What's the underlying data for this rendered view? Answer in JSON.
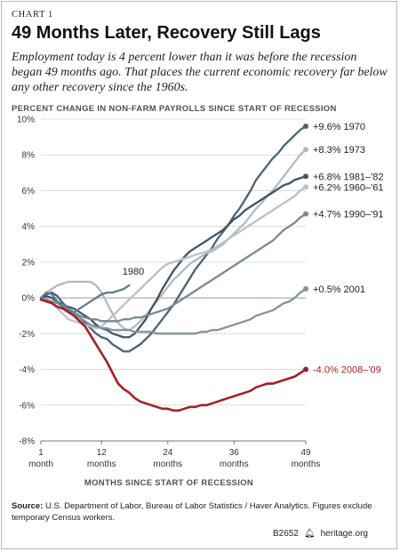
{
  "header": {
    "kicker": "CHART 1",
    "title": "49 Months Later, Recovery Still Lags",
    "subtitle": "Employment today is 4 percent lower than it was before the recession began 49 months ago. That places the current economic recovery far below any other recovery since the 1960s."
  },
  "footer": {
    "source_label": "Source:",
    "source_text": "U.S. Department of Labor, Bureau of Labor Statistics / Haver Analytics. Figures exclude temporary Census workers.",
    "code": "B2652",
    "site": "heritage.org",
    "logo_icon": "liberty-bell-icon"
  },
  "chart_data": {
    "type": "line",
    "ylabel": "PERCENT CHANGE IN NON-FARM PAYROLLS SINCE START OF RECESSION",
    "xlabel": "MONTHS SINCE START OF RECESSION",
    "xlim": [
      1,
      49
    ],
    "ylim": [
      -8,
      10
    ],
    "yticks": [
      -8,
      -6,
      -4,
      -2,
      0,
      2,
      4,
      6,
      8,
      10
    ],
    "ytick_labels": [
      "-8%",
      "-6%",
      "-4%",
      "-2%",
      "0%",
      "2%",
      "4%",
      "6%",
      "8%",
      "10%"
    ],
    "xticks": [
      1,
      12,
      24,
      36,
      49
    ],
    "xtick_labels": [
      [
        "1",
        "month"
      ],
      [
        "12",
        "months"
      ],
      [
        "24",
        "months"
      ],
      [
        "36",
        "months"
      ],
      [
        "49",
        "months"
      ]
    ],
    "grid": "horizontal",
    "series": [
      {
        "name": "1970",
        "label": "+9.6% 1970",
        "color": "#4a6373",
        "end_marker": true,
        "x": [
          1,
          2,
          3,
          4,
          5,
          6,
          7,
          8,
          9,
          10,
          11,
          12,
          13,
          14,
          15,
          16,
          17,
          18,
          19,
          20,
          21,
          22,
          23,
          24,
          25,
          26,
          27,
          28,
          29,
          30,
          31,
          32,
          33,
          34,
          35,
          36,
          37,
          38,
          39,
          40,
          41,
          42,
          43,
          44,
          45,
          46,
          47,
          48,
          49
        ],
        "values": [
          0.0,
          0.2,
          0.3,
          0.1,
          -0.3,
          -0.6,
          -0.9,
          -1.1,
          -1.4,
          -1.7,
          -2.0,
          -2.2,
          -2.3,
          -2.6,
          -2.8,
          -3.0,
          -3.0,
          -2.8,
          -2.6,
          -2.3,
          -2.0,
          -1.6,
          -1.2,
          -0.8,
          -0.4,
          0.1,
          0.6,
          1.1,
          1.6,
          2.0,
          2.4,
          2.8,
          3.3,
          3.7,
          4.1,
          4.6,
          5.0,
          5.5,
          6.0,
          6.6,
          7.0,
          7.4,
          7.8,
          8.1,
          8.5,
          8.8,
          9.1,
          9.4,
          9.6
        ]
      },
      {
        "name": "1973",
        "label": "+8.3% 1973",
        "color": "#b4b9bd",
        "end_marker": true,
        "x": [
          1,
          2,
          3,
          4,
          5,
          6,
          7,
          8,
          9,
          10,
          11,
          12,
          13,
          14,
          15,
          16,
          17,
          18,
          19,
          20,
          21,
          22,
          23,
          24,
          25,
          26,
          27,
          28,
          29,
          30,
          31,
          32,
          33,
          34,
          35,
          36,
          37,
          38,
          39,
          40,
          41,
          42,
          43,
          44,
          45,
          46,
          47,
          48,
          49
        ],
        "values": [
          0.0,
          0.3,
          0.5,
          0.7,
          0.8,
          0.9,
          0.9,
          0.9,
          0.9,
          0.9,
          0.7,
          0.3,
          -0.3,
          -0.9,
          -1.4,
          -1.7,
          -1.8,
          -1.6,
          -1.3,
          -1.0,
          -0.6,
          -0.2,
          0.2,
          0.6,
          1.0,
          1.3,
          1.6,
          1.9,
          2.1,
          2.3,
          2.5,
          2.6,
          2.8,
          3.0,
          3.3,
          3.6,
          3.9,
          4.2,
          4.6,
          5.0,
          5.3,
          5.7,
          6.0,
          6.4,
          6.8,
          7.2,
          7.6,
          8.0,
          8.3
        ]
      },
      {
        "name": "1981-'82",
        "label": "+6.8% 1981–'82",
        "color": "#3d5566",
        "end_marker": true,
        "x": [
          1,
          2,
          3,
          4,
          5,
          6,
          7,
          8,
          9,
          10,
          11,
          12,
          13,
          14,
          15,
          16,
          17,
          18,
          19,
          20,
          21,
          22,
          23,
          24,
          25,
          26,
          27,
          28,
          29,
          30,
          31,
          32,
          33,
          34,
          35,
          36,
          37,
          38,
          39,
          40,
          41,
          42,
          43,
          44,
          45,
          46,
          47,
          48,
          49
        ],
        "values": [
          0.0,
          0.1,
          0.0,
          -0.2,
          -0.4,
          -0.5,
          -0.6,
          -0.8,
          -1.0,
          -1.2,
          -1.5,
          -1.7,
          -1.8,
          -2.0,
          -2.1,
          -2.2,
          -2.2,
          -2.0,
          -1.6,
          -1.2,
          -0.6,
          -0.1,
          0.5,
          1.0,
          1.5,
          1.9,
          2.3,
          2.6,
          2.8,
          3.0,
          3.2,
          3.4,
          3.6,
          3.8,
          4.1,
          4.4,
          4.6,
          4.9,
          5.1,
          5.3,
          5.5,
          5.7,
          5.9,
          6.1,
          6.3,
          6.4,
          6.6,
          6.7,
          6.8
        ]
      },
      {
        "name": "1960-'61",
        "label": "+6.2% 1960–'61",
        "color": "#bcc1c4",
        "end_marker": true,
        "x": [
          1,
          2,
          3,
          4,
          5,
          6,
          7,
          8,
          9,
          10,
          11,
          12,
          13,
          14,
          15,
          16,
          17,
          18,
          19,
          20,
          21,
          22,
          23,
          24,
          25,
          26,
          27,
          28,
          29,
          30,
          31,
          32,
          33,
          34,
          35,
          36,
          37,
          38,
          39,
          40,
          41,
          42,
          43,
          44,
          45,
          46,
          47,
          48,
          49
        ],
        "values": [
          0.0,
          -0.1,
          -0.3,
          -0.6,
          -0.9,
          -1.2,
          -1.3,
          -1.4,
          -1.5,
          -1.6,
          -1.7,
          -1.6,
          -1.3,
          -1.0,
          -0.7,
          -0.4,
          -0.1,
          0.2,
          0.5,
          0.8,
          1.1,
          1.4,
          1.7,
          1.9,
          2.0,
          2.1,
          2.2,
          2.3,
          2.4,
          2.5,
          2.6,
          2.7,
          2.9,
          3.1,
          3.3,
          3.5,
          3.7,
          3.9,
          4.1,
          4.3,
          4.5,
          4.7,
          4.9,
          5.1,
          5.3,
          5.5,
          5.7,
          6.0,
          6.2
        ]
      },
      {
        "name": "1990-'91",
        "label": "+4.7% 1990–'91",
        "color": "#778a96",
        "end_marker": true,
        "x": [
          1,
          2,
          3,
          4,
          5,
          6,
          7,
          8,
          9,
          10,
          11,
          12,
          13,
          14,
          15,
          16,
          17,
          18,
          19,
          20,
          21,
          22,
          23,
          24,
          25,
          26,
          27,
          28,
          29,
          30,
          31,
          32,
          33,
          34,
          35,
          36,
          37,
          38,
          39,
          40,
          41,
          42,
          43,
          44,
          45,
          46,
          47,
          48,
          49
        ],
        "values": [
          0.0,
          -0.1,
          -0.2,
          -0.3,
          -0.4,
          -0.6,
          -0.8,
          -1.0,
          -1.1,
          -1.2,
          -1.2,
          -1.3,
          -1.3,
          -1.3,
          -1.3,
          -1.2,
          -1.2,
          -1.1,
          -1.1,
          -1.0,
          -0.9,
          -0.8,
          -0.7,
          -0.6,
          -0.4,
          -0.2,
          0.0,
          0.2,
          0.4,
          0.6,
          0.8,
          1.0,
          1.2,
          1.4,
          1.6,
          1.8,
          2.0,
          2.2,
          2.4,
          2.6,
          2.8,
          3.0,
          3.2,
          3.5,
          3.8,
          4.0,
          4.2,
          4.5,
          4.7
        ]
      },
      {
        "name": "2001",
        "label": "+0.5% 2001",
        "color": "#7f939e",
        "end_marker": true,
        "x": [
          1,
          2,
          3,
          4,
          5,
          6,
          7,
          8,
          9,
          10,
          11,
          12,
          13,
          14,
          15,
          16,
          17,
          18,
          19,
          20,
          21,
          22,
          23,
          24,
          25,
          26,
          27,
          28,
          29,
          30,
          31,
          32,
          33,
          34,
          35,
          36,
          37,
          38,
          39,
          40,
          41,
          42,
          43,
          44,
          45,
          46,
          47,
          48,
          49
        ],
        "values": [
          0.0,
          -0.1,
          -0.2,
          -0.3,
          -0.5,
          -0.7,
          -0.9,
          -1.1,
          -1.3,
          -1.5,
          -1.6,
          -1.7,
          -1.7,
          -1.8,
          -1.8,
          -1.8,
          -1.8,
          -1.9,
          -1.9,
          -1.9,
          -1.9,
          -2.0,
          -2.0,
          -2.0,
          -2.0,
          -2.0,
          -2.0,
          -2.0,
          -2.0,
          -1.9,
          -1.9,
          -1.8,
          -1.8,
          -1.7,
          -1.6,
          -1.5,
          -1.4,
          -1.3,
          -1.2,
          -1.0,
          -0.9,
          -0.8,
          -0.7,
          -0.5,
          -0.3,
          -0.2,
          0.0,
          0.3,
          0.5
        ]
      },
      {
        "name": "1980",
        "label": "1980",
        "color": "#5f7e8f",
        "end_marker": false,
        "x": [
          1,
          2,
          3,
          4,
          5,
          6,
          7,
          8,
          9,
          10,
          11,
          12,
          13,
          14,
          15,
          16,
          17
        ],
        "values": [
          0.0,
          0.3,
          0.2,
          -0.2,
          -0.5,
          -0.7,
          -0.8,
          -0.6,
          -0.4,
          -0.2,
          0.0,
          0.2,
          0.3,
          0.3,
          0.4,
          0.5,
          0.7
        ]
      },
      {
        "name": "2008-'09",
        "label": "-4.0% 2008–'09",
        "color": "#a91d24",
        "end_marker": true,
        "x": [
          1,
          2,
          3,
          4,
          5,
          6,
          7,
          8,
          9,
          10,
          11,
          12,
          13,
          14,
          15,
          16,
          17,
          18,
          19,
          20,
          21,
          22,
          23,
          24,
          25,
          26,
          27,
          28,
          29,
          30,
          31,
          32,
          33,
          34,
          35,
          36,
          37,
          38,
          39,
          40,
          41,
          42,
          43,
          44,
          45,
          46,
          47,
          48,
          49
        ],
        "values": [
          -0.1,
          -0.2,
          -0.3,
          -0.5,
          -0.6,
          -0.8,
          -1.0,
          -1.3,
          -1.6,
          -2.1,
          -2.6,
          -3.1,
          -3.6,
          -4.2,
          -4.8,
          -5.1,
          -5.3,
          -5.6,
          -5.8,
          -5.9,
          -6.0,
          -6.1,
          -6.2,
          -6.2,
          -6.3,
          -6.3,
          -6.2,
          -6.1,
          -6.1,
          -6.0,
          -6.0,
          -5.9,
          -5.8,
          -5.7,
          -5.6,
          -5.5,
          -5.4,
          -5.3,
          -5.2,
          -5.0,
          -4.9,
          -4.8,
          -4.8,
          -4.7,
          -4.6,
          -4.5,
          -4.4,
          -4.2,
          -4.0
        ]
      }
    ]
  }
}
